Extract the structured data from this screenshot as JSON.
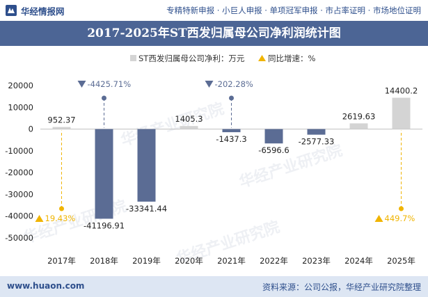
{
  "header": {
    "site_name": "华经情报网",
    "nav": "专精特新申报 · 小巨人申报 · 单项冠军申报 · 市占率证明 · 市场地位证明"
  },
  "footer": {
    "website": "www.huaon.com",
    "source": "资料来源：公司公报，华经产业研究院整理"
  },
  "watermark": "华经产业研究院",
  "colors": {
    "title_bg": "#4c6595",
    "bar_positive": "#d4d4d4",
    "bar_negative": "#5b6c94",
    "growth_positive": "#f0b400",
    "growth_negative": "#5b6c94",
    "footer_bg": "#dde6f3"
  },
  "chart_data": {
    "type": "bar",
    "title": "2017-2025年ST西发归属母公司净利润统计图",
    "categories": [
      "2017年",
      "2018年",
      "2019年",
      "2020年",
      "2021年",
      "2022年",
      "2023年",
      "2024年",
      "2025年"
    ],
    "series": [
      {
        "name": "ST西发归属母公司净利：万元",
        "values": [
          952.37,
          -41196.91,
          -33341.44,
          1405.3,
          -1437.3,
          -6596.6,
          -2577.33,
          2619.63,
          14400.2
        ],
        "labels": [
          "952.37",
          "-41196.91",
          "-33341.44",
          "1405.3",
          "-1437.3",
          "-6596.6",
          "-2577.33",
          "2619.63",
          "14400.2"
        ]
      },
      {
        "name": "同比增速：%",
        "markers": [
          {
            "category": "2017年",
            "value": 19.43,
            "label": "19.43%"
          },
          {
            "category": "2018年",
            "value": -4425.71,
            "label": "-4425.71%"
          },
          {
            "category": "2021年",
            "value": -202.28,
            "label": "-202.28%"
          },
          {
            "category": "2025年",
            "value": 449.7,
            "label": "449.7%"
          }
        ]
      }
    ],
    "yticks": [
      "20000",
      "10000",
      "0",
      "-10000",
      "-20000",
      "-30000",
      "-40000",
      "-50000"
    ],
    "ylim": [
      -50000,
      20000
    ],
    "legend_position": "top-right",
    "grid": false
  }
}
